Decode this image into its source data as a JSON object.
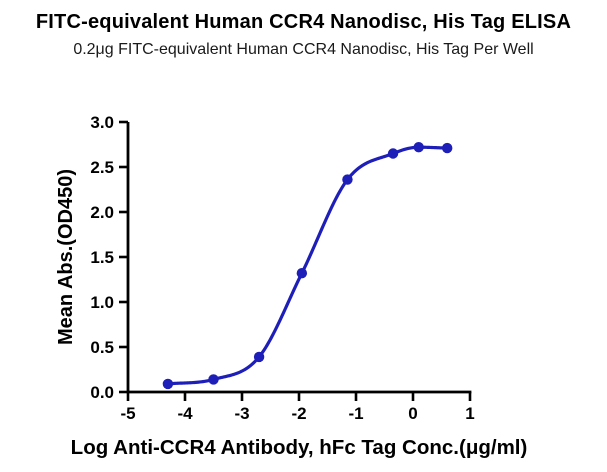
{
  "header": {
    "title": "FITC-equivalent Human CCR4 Nanodisc, His Tag ELISA",
    "subtitle": "0.2μg FITC-equivalent Human CCR4 Nanodisc, His Tag Per Well"
  },
  "chart_data": {
    "type": "scatter",
    "subtype": "sigmoidal-dose-response-fit",
    "title": "FITC-equivalent Human CCR4 Nanodisc, His Tag ELISA",
    "subtitle": "0.2μg FITC-equivalent Human CCR4 Nanodisc, His Tag Per Well",
    "xlabel": "Log Anti-CCR4 Antibody, hFc Tag Conc.(μg/ml)",
    "ylabel": "Mean Abs.(OD450)",
    "x": [
      -4.3,
      -3.5,
      -2.7,
      -1.95,
      -1.15,
      -0.35,
      0.1,
      0.6
    ],
    "y": [
      0.09,
      0.14,
      0.39,
      1.32,
      2.36,
      2.65,
      2.72,
      2.71
    ],
    "xlim": [
      -5,
      1
    ],
    "ylim": [
      0,
      3
    ],
    "x_ticks": [
      "-5",
      "-4",
      "-3",
      "-2",
      "-1",
      "0",
      "1"
    ],
    "y_ticks": [
      "0.0",
      "0.5",
      "1.0",
      "1.5",
      "2.0",
      "2.5",
      "3.0"
    ],
    "grid": false,
    "legend": "none",
    "marker": "circle",
    "line": "smooth"
  },
  "colors": {
    "series": "#1e1eb8",
    "axis": "#000000",
    "title_text": "#000000",
    "subtitle_text": "#1a1a1a",
    "background": "#ffffff"
  }
}
